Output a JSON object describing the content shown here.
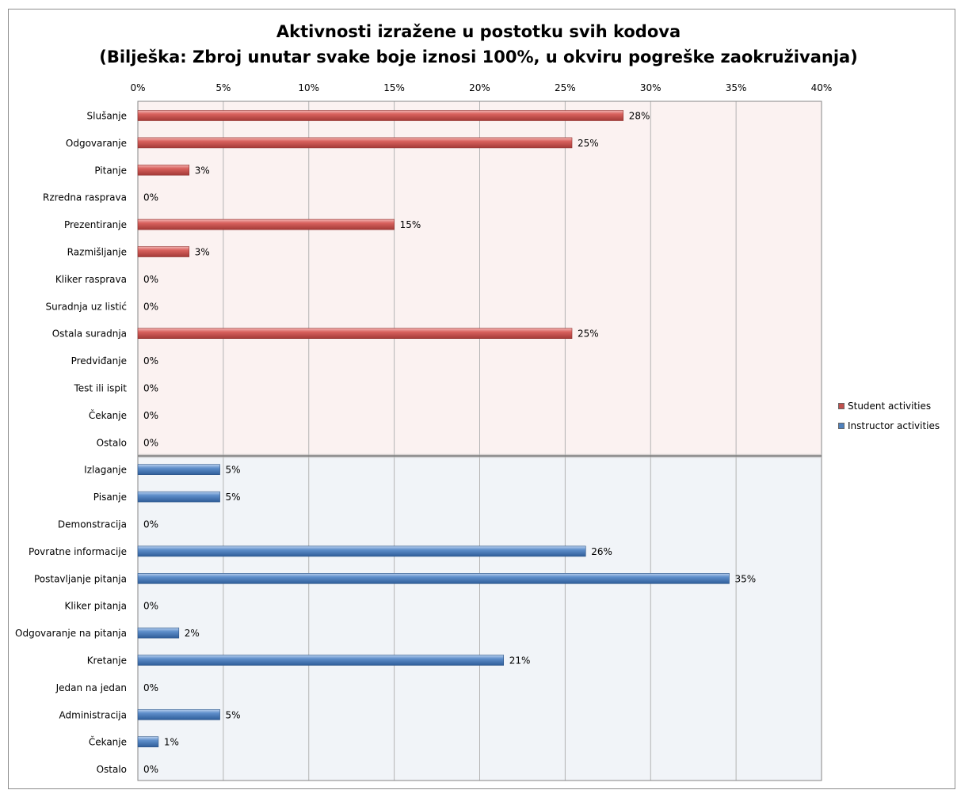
{
  "chart_data": {
    "type": "bar",
    "orientation": "horizontal",
    "title": "Aktivnosti izražene u postotku svih kodova",
    "subtitle": "(Bilješka:  Zbroj unutar svake boje iznosi 100%, u okviru pogreške zaokruživanja)",
    "xlabel": "",
    "ylabel": "",
    "xlim": [
      0,
      40
    ],
    "x_ticks": [
      "0%",
      "5%",
      "10%",
      "15%",
      "20%",
      "25%",
      "30%",
      "35%",
      "40%"
    ],
    "x_axis_position": "top",
    "grid": true,
    "legend_position": "right",
    "series": [
      {
        "name": "Student activities",
        "color": "#c0504d",
        "categories": [
          "Slušanje",
          "Odgovaranje",
          "Pitanje",
          "Rzredna rasprava",
          "Prezentiranje",
          "Razmišljanje",
          "Kliker rasprava",
          "Suradnja uz listić",
          "Ostala suradnja",
          "Predviđanje",
          "Test ili ispit",
          "Čekanje",
          "Ostalo"
        ],
        "values": [
          28.4,
          25.4,
          3,
          0,
          15,
          3,
          0,
          0,
          25.4,
          0,
          0,
          0,
          0
        ],
        "labels": [
          "28%",
          "25%",
          "3%",
          "0%",
          "15%",
          "3%",
          "0%",
          "0%",
          "25%",
          "0%",
          "0%",
          "0%",
          "0%"
        ]
      },
      {
        "name": "Instructor activities",
        "color": "#4f81bd",
        "categories": [
          "Izlaganje",
          "Pisanje",
          "Demonstracija",
          "Povratne informacije",
          "Postavljanje pitanja",
          "Kliker pitanja",
          "Odgovaranje na pitanja",
          "Kretanje",
          "Jedan na jedan",
          "Administracija",
          "Čekanje",
          "Ostalo"
        ],
        "values": [
          4.8,
          4.8,
          0,
          26.2,
          34.6,
          0,
          2.4,
          21.4,
          0,
          4.8,
          1.2,
          0
        ],
        "labels": [
          "5%",
          "5%",
          "0%",
          "26%",
          "35%",
          "0%",
          "2%",
          "21%",
          "0%",
          "5%",
          "1%",
          "0%"
        ]
      }
    ]
  }
}
